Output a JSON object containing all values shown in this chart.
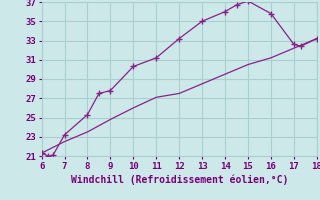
{
  "xlabel": "Windchill (Refroidissement éolien,°C)",
  "bg_color": "#cce8e8",
  "grid_color": "#aacfcf",
  "line_color": "#882288",
  "xlim": [
    6,
    18
  ],
  "ylim": [
    21,
    37
  ],
  "xticks": [
    6,
    7,
    8,
    9,
    10,
    11,
    12,
    13,
    14,
    15,
    16,
    17,
    18
  ],
  "yticks": [
    21,
    23,
    25,
    27,
    29,
    31,
    33,
    35,
    37
  ],
  "curve1_x": [
    6.0,
    6.3,
    6.5,
    7.0,
    8.0,
    8.5,
    9.0,
    10.0,
    11.0,
    12.0,
    13.0,
    14.0,
    14.5,
    15.0,
    16.0,
    17.0,
    17.3,
    18.0
  ],
  "curve1_y": [
    21.3,
    21.0,
    21.1,
    23.2,
    25.3,
    27.5,
    27.8,
    30.3,
    31.2,
    33.2,
    35.0,
    36.0,
    36.7,
    37.1,
    35.8,
    32.6,
    32.4,
    33.2
  ],
  "curve2_x": [
    6.0,
    7.0,
    8.0,
    9.0,
    10.0,
    11.0,
    12.0,
    13.0,
    14.0,
    15.0,
    16.0,
    17.0,
    18.0
  ],
  "curve2_y": [
    21.3,
    22.5,
    23.5,
    24.8,
    26.0,
    27.1,
    27.5,
    28.5,
    29.5,
    30.5,
    31.2,
    32.2,
    33.2
  ],
  "font_color": "#770077",
  "tick_fontsize": 6.5,
  "label_fontsize": 7.0
}
